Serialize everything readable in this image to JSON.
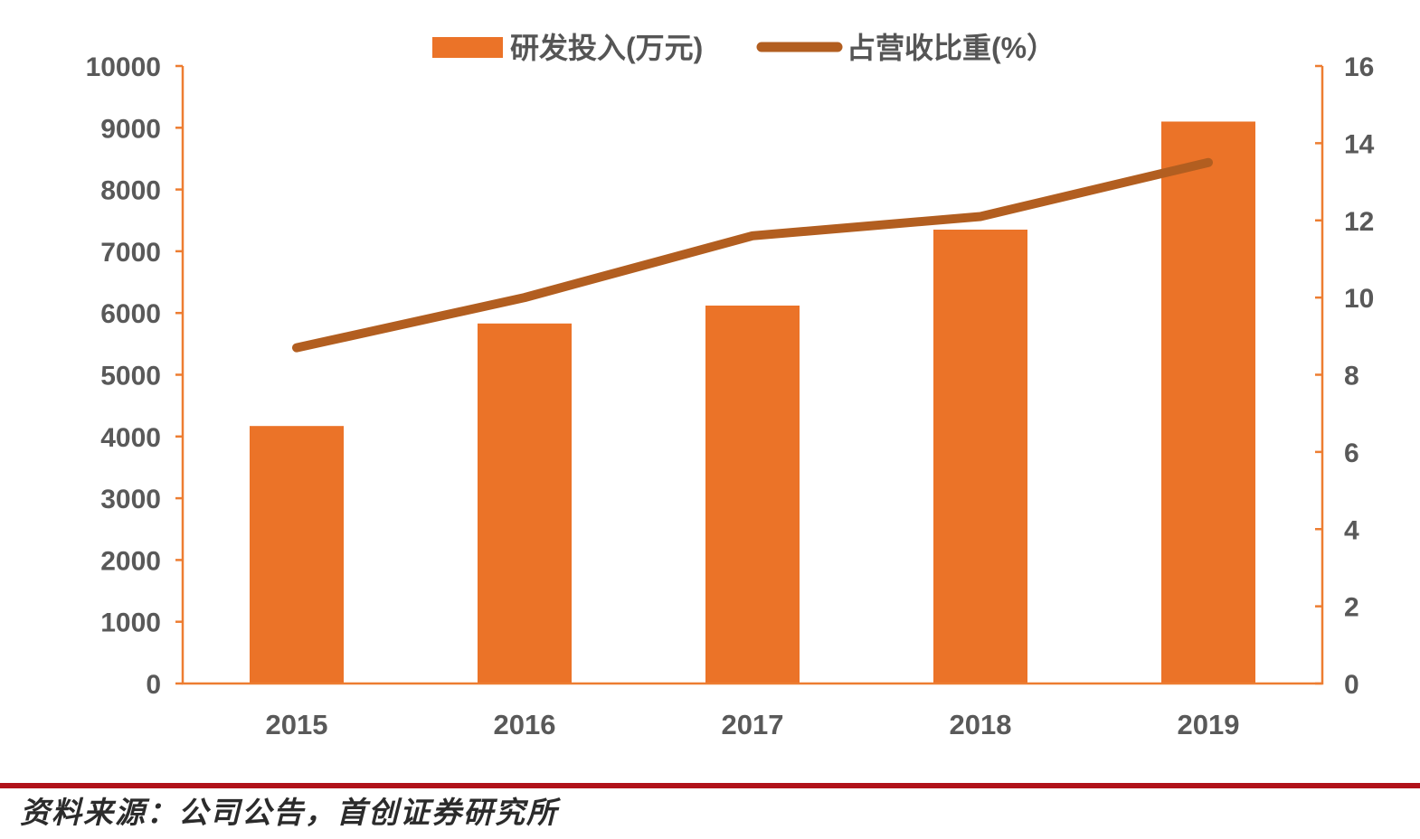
{
  "source_note": "资料来源：公司公告，首创证券研究所",
  "colors": {
    "bar": "#EB7328",
    "line": "#B25E20",
    "axis": "#ED7D31",
    "tick_label": "#595959",
    "legend_label": "#555555",
    "source_rule": "#B1121A",
    "source_text": "#2b2b2b",
    "background": "#ffffff"
  },
  "legend": {
    "items": [
      {
        "label": "研发投入(万元)",
        "marker": "bar-swatch"
      },
      {
        "label": "占营收比重(%）",
        "marker": "line-swatch"
      }
    ]
  },
  "chart_data": {
    "type": "bar",
    "subtype": "combo-bar-line-dual-axis",
    "title": "",
    "categories": [
      "2015",
      "2016",
      "2017",
      "2018",
      "2019"
    ],
    "series": [
      {
        "name": "研发投入(万元)",
        "type": "bar",
        "axis": "left",
        "values": [
          4170,
          5830,
          6120,
          7350,
          9100
        ]
      },
      {
        "name": "占营收比重(%）",
        "type": "line",
        "axis": "right",
        "values": [
          8.7,
          10.0,
          11.6,
          12.1,
          13.5
        ]
      }
    ],
    "left_axis": {
      "min": 0,
      "max": 10000,
      "step": 1000,
      "ticks": [
        "0",
        "1000",
        "2000",
        "3000",
        "4000",
        "5000",
        "6000",
        "7000",
        "8000",
        "9000",
        "10000"
      ]
    },
    "right_axis": {
      "min": 0,
      "max": 16,
      "step": 2,
      "ticks": [
        "0",
        "2",
        "4",
        "6",
        "8",
        "10",
        "12",
        "14",
        "16"
      ]
    },
    "grid": false,
    "legend_position": "top"
  }
}
